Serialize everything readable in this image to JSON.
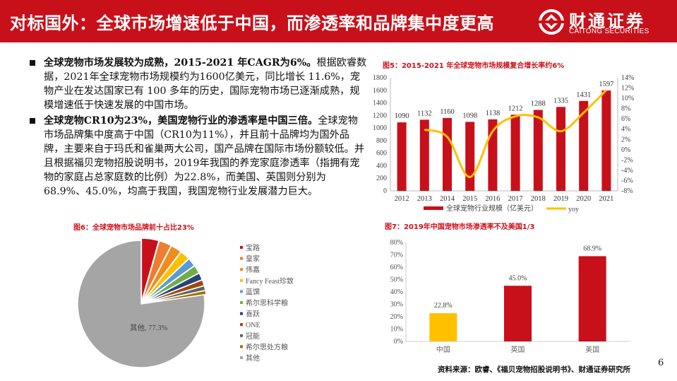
{
  "header": {
    "title": "对标国外：全球市场增速低于中国，而渗透率和品牌集中度更高",
    "logo_cn": "财通证券",
    "logo_en": "CAITONG SECURITIES",
    "brand_color": "#c8101a"
  },
  "bullets": [
    {
      "bold": "全球宠物市场发展较为成熟，2015-2021 年CAGR为6%。",
      "text": "根据欧睿数据，2021年全球宠物市场规模约为1600亿美元，同比增长 11.6%，宠物产业在发达国家已有 100 多年的历史，国际宠物市场已逐渐成熟，规模增速低于快速发展的中国市场。"
    },
    {
      "bold": "全球宠物CR10为23%，美国宠物行业的渗透率是中国三倍。",
      "text": "全球宠物市场品牌集中度高于中国（CR10为11%），并且前十品牌均为国外品牌，主要来自于玛氏和雀巢两大公司，国产品牌在国际市场份额较低。并且根据福贝宠物招股说明书，2019年我国的养宠家庭渗透率（指拥有宠物的家庭占总家庭数的比例）为22.8%，而美国、英国则分别为68.9%、45.0%，均高于我国，我国宠物行业发展潜力巨大。"
    }
  ],
  "chart_data": [
    {
      "type": "bar+line",
      "title": "图5：2015-2021 年全球宠物市场规模复合增长率约6%",
      "categories": [
        "2012",
        "2013",
        "2014",
        "2015",
        "2016",
        "2017",
        "2018",
        "2019",
        "2020",
        "2021"
      ],
      "series": [
        {
          "name": "全球宠物行业规模（亿美元）",
          "type": "bar",
          "axis": "left",
          "color": "#c8101a",
          "values": [
            1090,
            1132,
            1160,
            1098,
            1138,
            1212,
            1288,
            1335,
            1431,
            1597
          ]
        },
        {
          "name": "yoy",
          "type": "line",
          "axis": "right",
          "color": "#ffc000",
          "values": [
            null,
            3.9,
            2.5,
            -5.3,
            3.6,
            6.5,
            6.3,
            3.6,
            7.2,
            11.6
          ]
        }
      ],
      "ylim": [
        0,
        1800
      ],
      "yticks": [
        0,
        200,
        400,
        600,
        800,
        1000,
        1200,
        1400,
        1600,
        1800
      ],
      "y2lim": [
        -8,
        14
      ],
      "y2ticks": [
        "-8%",
        "-6%",
        "-4%",
        "-2%",
        "0%",
        "2%",
        "4%",
        "6%",
        "8%",
        "10%",
        "12%",
        "14%"
      ],
      "legend": "bottom",
      "grid": false
    },
    {
      "type": "pie",
      "title": "图6：全球宠物市场品牌前十占比23%",
      "labels": [
        "宝路",
        "皇家",
        "伟嘉",
        "Fancy Feast珍致",
        "蓝馔",
        "希尔思科学粮",
        "喜跃",
        "ONE",
        "冠能",
        "希尔思处方粮",
        "其他"
      ],
      "values": [
        4.4,
        3.2,
        2.8,
        2.5,
        2.2,
        2.1,
        1.8,
        1.5,
        1.2,
        1.0,
        77.3
      ],
      "colors": [
        "#c8101a",
        "#ed7d31",
        "#f08c1c",
        "#ffc000",
        "#5b9bd5",
        "#70ad47",
        "#264478",
        "#9e480e",
        "#636363",
        "#997300",
        "#a5a5a5"
      ],
      "data_label": "其他, 77.3%",
      "legend": "right"
    },
    {
      "type": "bar",
      "title": "图7：2019年中国宠物市场渗透率不及美国1/3",
      "categories": [
        "中国",
        "英国",
        "美国"
      ],
      "values": [
        22.8,
        45.0,
        68.9
      ],
      "value_labels": [
        "22.8%",
        "45.0%",
        "68.9%"
      ],
      "colors": [
        "#ffc000",
        "#c8101a",
        "#c8101a"
      ],
      "ylim": [
        0,
        80
      ],
      "yticks": [
        "0%",
        "10%",
        "20%",
        "30%",
        "40%",
        "50%",
        "60%",
        "70%",
        "80%"
      ],
      "grid": false
    }
  ],
  "footer": {
    "source": "资料来源：欧睿、《福贝宠物招股说明书》、财通证券研究所",
    "page": "6"
  }
}
